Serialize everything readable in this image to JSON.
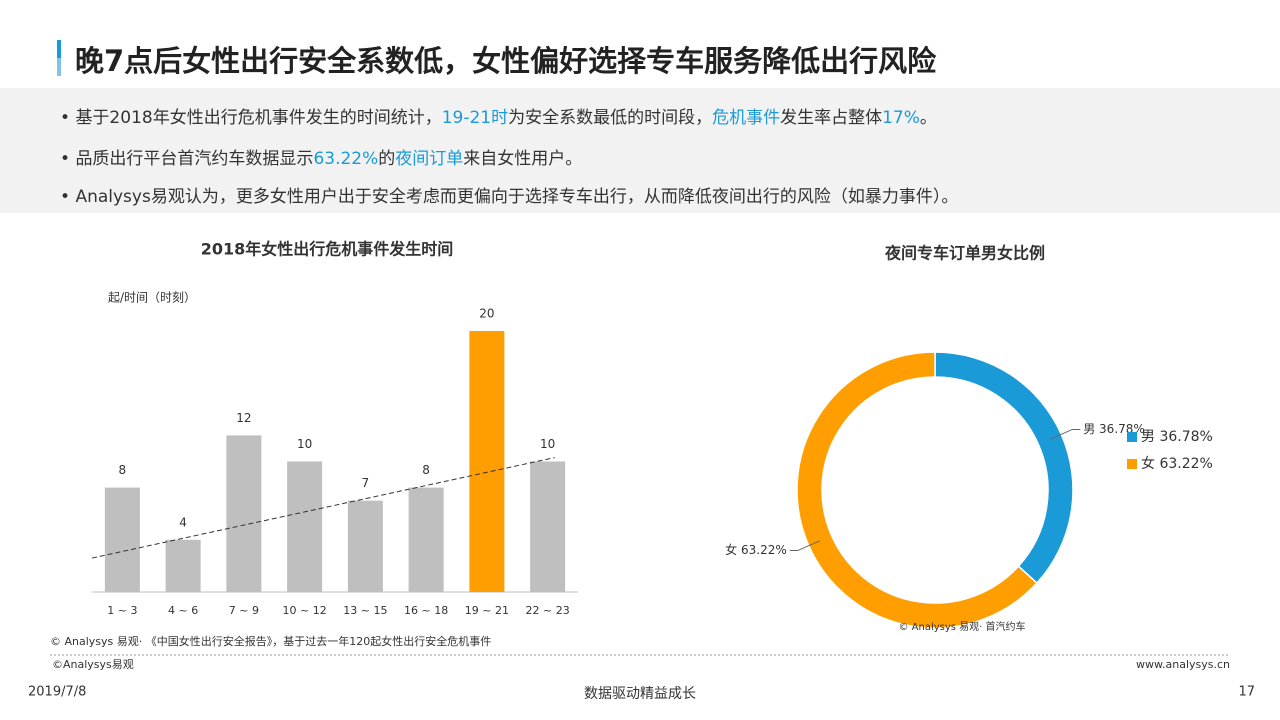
{
  "header": {
    "title": "晚7点后女性出行安全系数低，女性偏好选择专车服务降低出行风险"
  },
  "bullets": [
    [
      {
        "text": "基于2018年女性出行危机事件发生的时间统计，"
      },
      {
        "text": "19-21时",
        "color": "#1a9ad6"
      },
      {
        "text": "为安全系数最低的时间段，"
      },
      {
        "text": "危机事件",
        "color": "#1a9ad6"
      },
      {
        "text": "发生率占整体"
      },
      {
        "text": "17%",
        "color": "#1a9ad6"
      },
      {
        "text": "。"
      }
    ],
    [
      {
        "text": "品质出行平台首汽约车数据显示"
      },
      {
        "text": "63.22%",
        "color": "#1a9ad6"
      },
      {
        "text": "的"
      },
      {
        "text": "夜间订单",
        "color": "#1a9ad6"
      },
      {
        "text": "来自女性用户。"
      }
    ],
    [
      {
        "text": "Analysys易观认为，更多女性用户出于安全考虑而更偏向于选择专车出行，从而降低夜间出行的风险（如暴力事件）。"
      }
    ]
  ],
  "chart_data": [
    {
      "type": "bar",
      "title": "2018年女性出行危机事件发生时间",
      "y_label": "起/时间（时刻）",
      "categories": [
        "1 ~ 3",
        "4 ~ 6",
        "7 ~ 9",
        "10 ~ 12",
        "13 ~ 15",
        "16 ~ 18",
        "19 ~ 21",
        "22 ~ 23"
      ],
      "values": [
        8,
        4,
        12,
        10,
        7,
        8,
        20,
        10
      ],
      "colors": [
        "#bfbfbf",
        "#bfbfbf",
        "#bfbfbf",
        "#bfbfbf",
        "#bfbfbf",
        "#bfbfbf",
        "#ff9e00",
        "#bfbfbf"
      ],
      "trendline": [
        2.6,
        10.3
      ],
      "source": "© Analysys 易观· 《中国女性出行安全报告》，基于过去一年120起女性出行安全危机事件"
    },
    {
      "type": "donut",
      "title": "夜间专车订单男女比例",
      "categories": [
        "男 36.78%",
        "女 63.22%"
      ],
      "values": [
        36.78,
        63.22
      ],
      "colors": [
        "#1a9ad6",
        "#ff9e00"
      ],
      "legend": "right",
      "source": "© Analysys 易观· 首汽约车"
    }
  ],
  "footer": {
    "copyright": "©Analysys易观",
    "website": "www.analysys.cn",
    "date": "2019/7/8",
    "slogan": "数据驱动精益成长",
    "page": "17"
  }
}
